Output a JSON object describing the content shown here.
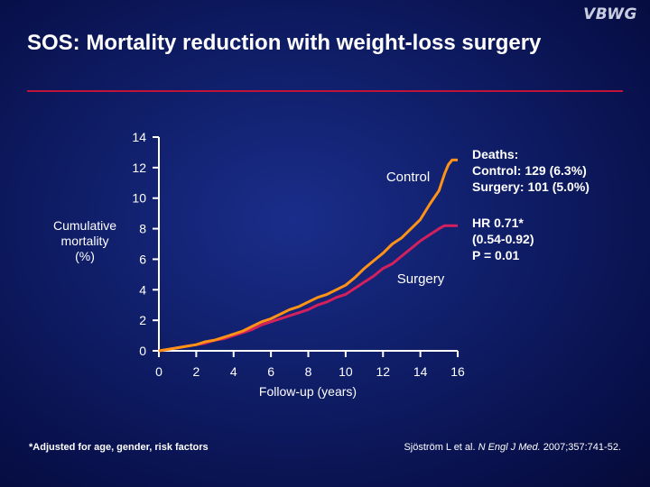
{
  "logo": "VBWG",
  "title": "SOS: Mortality reduction with weight-loss surgery",
  "chart_data": {
    "type": "line",
    "xlabel": "Follow-up (years)",
    "ylabel": "Cumulative\nmortality\n(%)",
    "xlim": [
      0,
      16
    ],
    "ylim": [
      0,
      14
    ],
    "xticks": [
      0,
      2,
      4,
      6,
      8,
      10,
      12,
      14,
      16
    ],
    "yticks": [
      0,
      2,
      4,
      6,
      8,
      10,
      12,
      14
    ],
    "series": [
      {
        "name": "Control",
        "color": "#ff9316",
        "points": [
          [
            0,
            0
          ],
          [
            0.5,
            0.1
          ],
          [
            1,
            0.2
          ],
          [
            1.5,
            0.3
          ],
          [
            2,
            0.4
          ],
          [
            2.5,
            0.6
          ],
          [
            3,
            0.7
          ],
          [
            3.5,
            0.9
          ],
          [
            4,
            1.1
          ],
          [
            4.5,
            1.3
          ],
          [
            5,
            1.6
          ],
          [
            5.5,
            1.9
          ],
          [
            6,
            2.1
          ],
          [
            6.5,
            2.4
          ],
          [
            7,
            2.7
          ],
          [
            7.5,
            2.9
          ],
          [
            8,
            3.2
          ],
          [
            8.5,
            3.5
          ],
          [
            9,
            3.7
          ],
          [
            9.5,
            4.0
          ],
          [
            10,
            4.3
          ],
          [
            10.5,
            4.8
          ],
          [
            11,
            5.4
          ],
          [
            11.5,
            5.9
          ],
          [
            12,
            6.4
          ],
          [
            12.5,
            7.0
          ],
          [
            13,
            7.4
          ],
          [
            13.5,
            8.0
          ],
          [
            14,
            8.6
          ],
          [
            14.5,
            9.6
          ],
          [
            15,
            10.5
          ],
          [
            15.3,
            11.6
          ],
          [
            15.5,
            12.2
          ],
          [
            15.7,
            12.5
          ],
          [
            16,
            12.5
          ]
        ]
      },
      {
        "name": "Surgery",
        "color": "#d4205d",
        "points": [
          [
            0,
            0
          ],
          [
            0.5,
            0.1
          ],
          [
            1,
            0.2
          ],
          [
            1.5,
            0.3
          ],
          [
            2,
            0.4
          ],
          [
            2.5,
            0.5
          ],
          [
            3,
            0.7
          ],
          [
            3.5,
            0.8
          ],
          [
            4,
            1.0
          ],
          [
            4.5,
            1.2
          ],
          [
            5,
            1.4
          ],
          [
            5.5,
            1.7
          ],
          [
            6,
            1.9
          ],
          [
            6.5,
            2.1
          ],
          [
            7,
            2.3
          ],
          [
            7.5,
            2.5
          ],
          [
            8,
            2.7
          ],
          [
            8.5,
            3.0
          ],
          [
            9,
            3.2
          ],
          [
            9.5,
            3.5
          ],
          [
            10,
            3.7
          ],
          [
            10.5,
            4.1
          ],
          [
            11,
            4.5
          ],
          [
            11.5,
            4.9
          ],
          [
            12,
            5.4
          ],
          [
            12.5,
            5.7
          ],
          [
            13,
            6.2
          ],
          [
            13.5,
            6.7
          ],
          [
            14,
            7.2
          ],
          [
            14.5,
            7.6
          ],
          [
            15,
            8.0
          ],
          [
            15.3,
            8.2
          ],
          [
            16,
            8.2
          ]
        ]
      }
    ],
    "annotations": {
      "control_label": "Control",
      "surgery_label": "Surgery"
    }
  },
  "deaths": {
    "heading": "Deaths:",
    "control": "Control: 129 (6.3%)",
    "surgery": "Surgery: 101 (5.0%)"
  },
  "hazard": {
    "hr": "HR 0.71*",
    "ci": "(0.54-0.92)",
    "p": "P = 0.01"
  },
  "footnote": "*Adjusted for age, gender, risk factors",
  "citation": {
    "authors": "Sjöström L et al. ",
    "journal": "N Engl J Med.",
    "details": " 2007;357:741-52."
  }
}
